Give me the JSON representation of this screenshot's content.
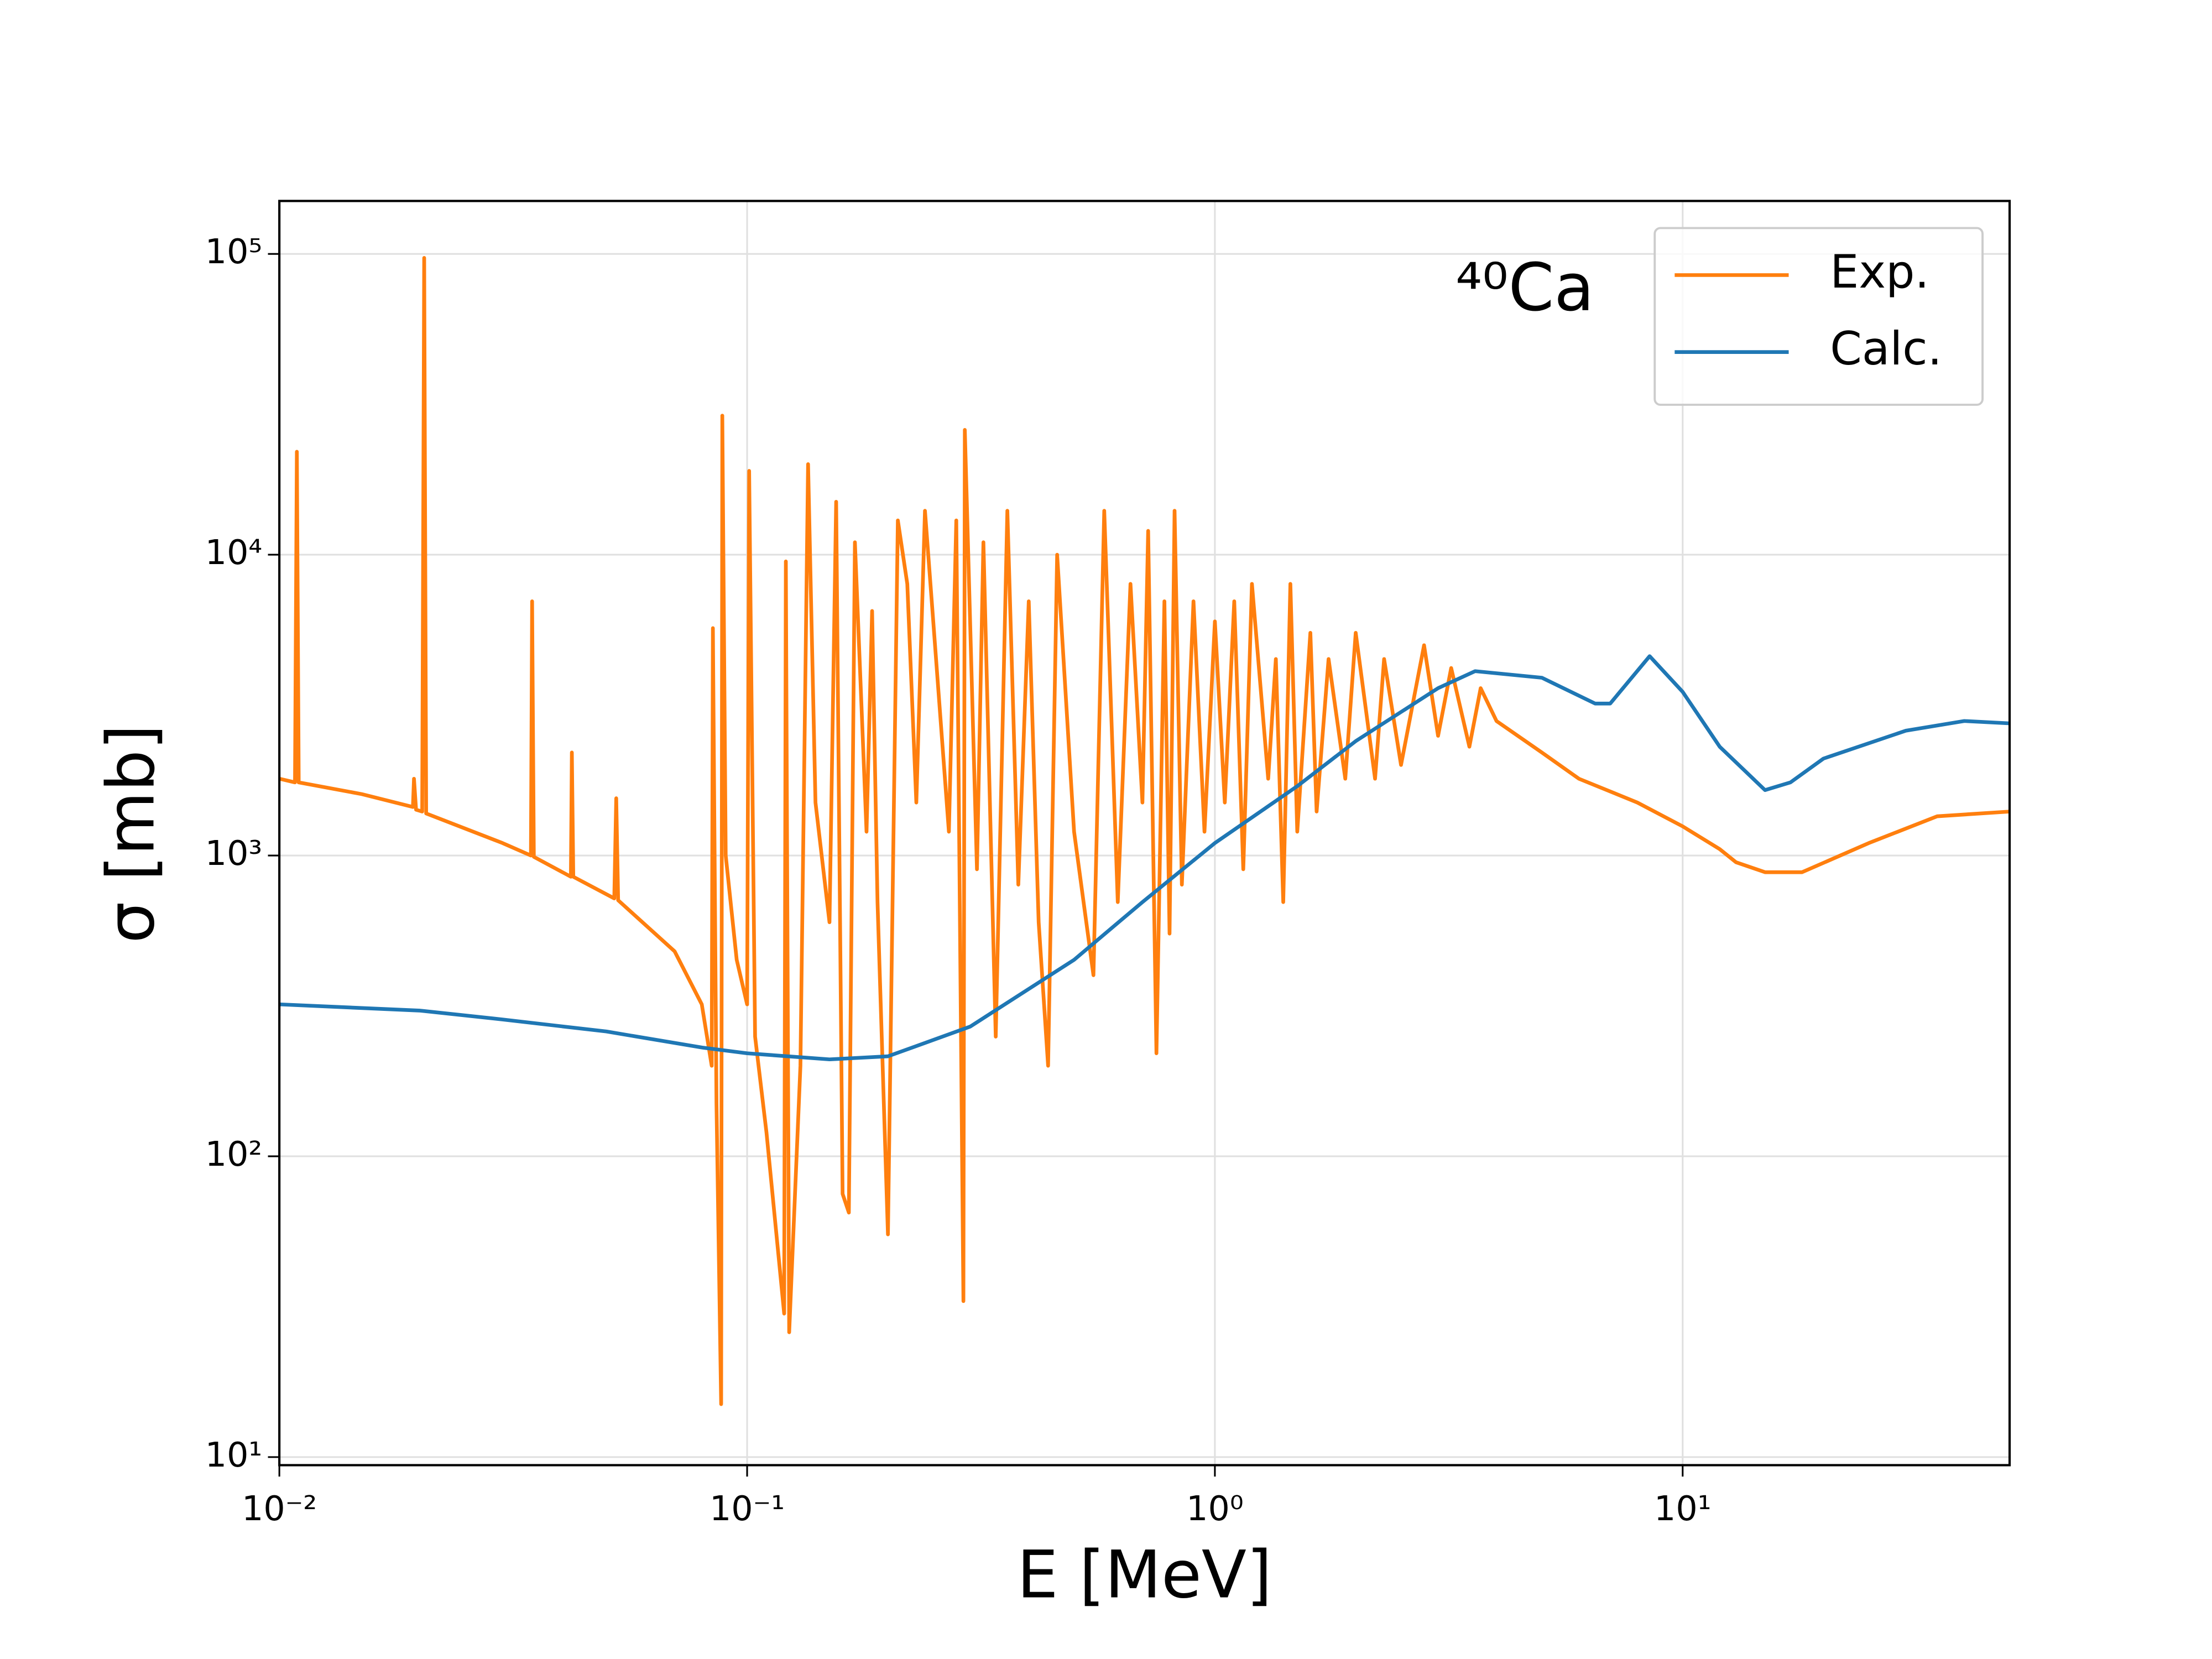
{
  "chart_data": {
    "type": "line",
    "xlabel": "E [MeV]",
    "ylabel": "σ [mb]",
    "annotation": "⁴⁰Ca",
    "xscale": "log",
    "yscale": "log",
    "grid": true,
    "legend": "upper right",
    "xlim": [
      0.01,
      50
    ],
    "ylim": [
      9.4,
      150000
    ],
    "xticks": [
      {
        "value": 0.01,
        "label": "10⁻²"
      },
      {
        "value": 0.1,
        "label": "10⁻¹"
      },
      {
        "value": 1,
        "label": "10⁰"
      },
      {
        "value": 10,
        "label": "10¹"
      }
    ],
    "yticks": [
      {
        "value": 10,
        "label": "10¹"
      },
      {
        "value": 100,
        "label": "10²"
      },
      {
        "value": 1000,
        "label": "10³"
      },
      {
        "value": 10000,
        "label": "10⁴"
      },
      {
        "value": 100000,
        "label": "10⁵"
      }
    ],
    "series": [
      {
        "name": "Exp.",
        "color": "#ff7f0e",
        "x": [
          0.01,
          0.0108,
          0.0109,
          0.011,
          0.015,
          0.0193,
          0.0194,
          0.0196,
          0.0202,
          0.0204,
          0.0206,
          0.03,
          0.0345,
          0.0347,
          0.035,
          0.042,
          0.0422,
          0.0425,
          0.052,
          0.0525,
          0.053,
          0.07,
          0.08,
          0.084,
          0.0845,
          0.086,
          0.088,
          0.0885,
          0.09,
          0.095,
          0.1,
          0.101,
          0.104,
          0.11,
          0.12,
          0.121,
          0.123,
          0.13,
          0.135,
          0.14,
          0.15,
          0.155,
          0.16,
          0.165,
          0.17,
          0.18,
          0.185,
          0.19,
          0.2,
          0.21,
          0.22,
          0.23,
          0.24,
          0.25,
          0.27,
          0.28,
          0.29,
          0.292,
          0.31,
          0.32,
          0.34,
          0.36,
          0.38,
          0.4,
          0.42,
          0.44,
          0.46,
          0.5,
          0.55,
          0.58,
          0.62,
          0.66,
          0.7,
          0.72,
          0.75,
          0.78,
          0.8,
          0.82,
          0.85,
          0.9,
          0.95,
          1.0,
          1.05,
          1.1,
          1.15,
          1.2,
          1.3,
          1.35,
          1.4,
          1.45,
          1.5,
          1.6,
          1.65,
          1.75,
          1.9,
          2.0,
          2.2,
          2.3,
          2.5,
          2.8,
          3.0,
          3.2,
          3.5,
          3.7,
          4.0,
          5,
          6,
          8,
          10,
          12,
          13,
          15,
          18,
          25,
          35,
          50
        ],
        "values": [
          1800,
          1750,
          22000,
          1750,
          1600,
          1450,
          1800,
          1420,
          1400,
          97000,
          1380,
          1100,
          1000,
          7000,
          990,
          850,
          2200,
          850,
          720,
          1550,
          710,
          480,
          320,
          200,
          5700,
          150,
          15,
          29000,
          1000,
          450,
          320,
          19000,
          250,
          120,
          30,
          9500,
          26,
          200,
          20000,
          1500,
          600,
          15000,
          75,
          65,
          11000,
          1200,
          6500,
          700,
          55,
          13000,
          8000,
          1500,
          14000,
          6000,
          1200,
          13000,
          33,
          26000,
          900,
          11000,
          250,
          14000,
          800,
          7000,
          600,
          200,
          10000,
          1200,
          400,
          14000,
          700,
          8000,
          1500,
          12000,
          220,
          7000,
          550,
          14000,
          800,
          7000,
          1200,
          6000,
          1500,
          7000,
          900,
          8000,
          1800,
          4500,
          700,
          8000,
          1200,
          5500,
          1400,
          4500,
          1800,
          5500,
          1800,
          4500,
          2000,
          5000,
          2500,
          4200,
          2300,
          3600,
          2800,
          2200,
          1800,
          1500,
          1250,
          1050,
          950,
          880,
          880,
          1100,
          1350,
          1400
        ]
      },
      {
        "name": "Calc.",
        "color": "#1f77b4",
        "x": [
          0.01,
          0.02,
          0.03,
          0.05,
          0.08,
          0.1,
          0.15,
          0.2,
          0.3,
          0.5,
          0.7,
          1.0,
          1.5,
          2,
          3,
          3.6,
          5,
          6.5,
          7,
          8.5,
          10,
          12,
          15,
          17,
          20,
          30,
          40,
          50
        ],
        "values": [
          320,
          305,
          285,
          260,
          230,
          220,
          210,
          215,
          270,
          450,
          700,
          1100,
          1700,
          2400,
          3600,
          4100,
          3900,
          3200,
          3200,
          4600,
          3500,
          2300,
          1650,
          1750,
          2100,
          2600,
          2800,
          2750
        ]
      }
    ]
  }
}
